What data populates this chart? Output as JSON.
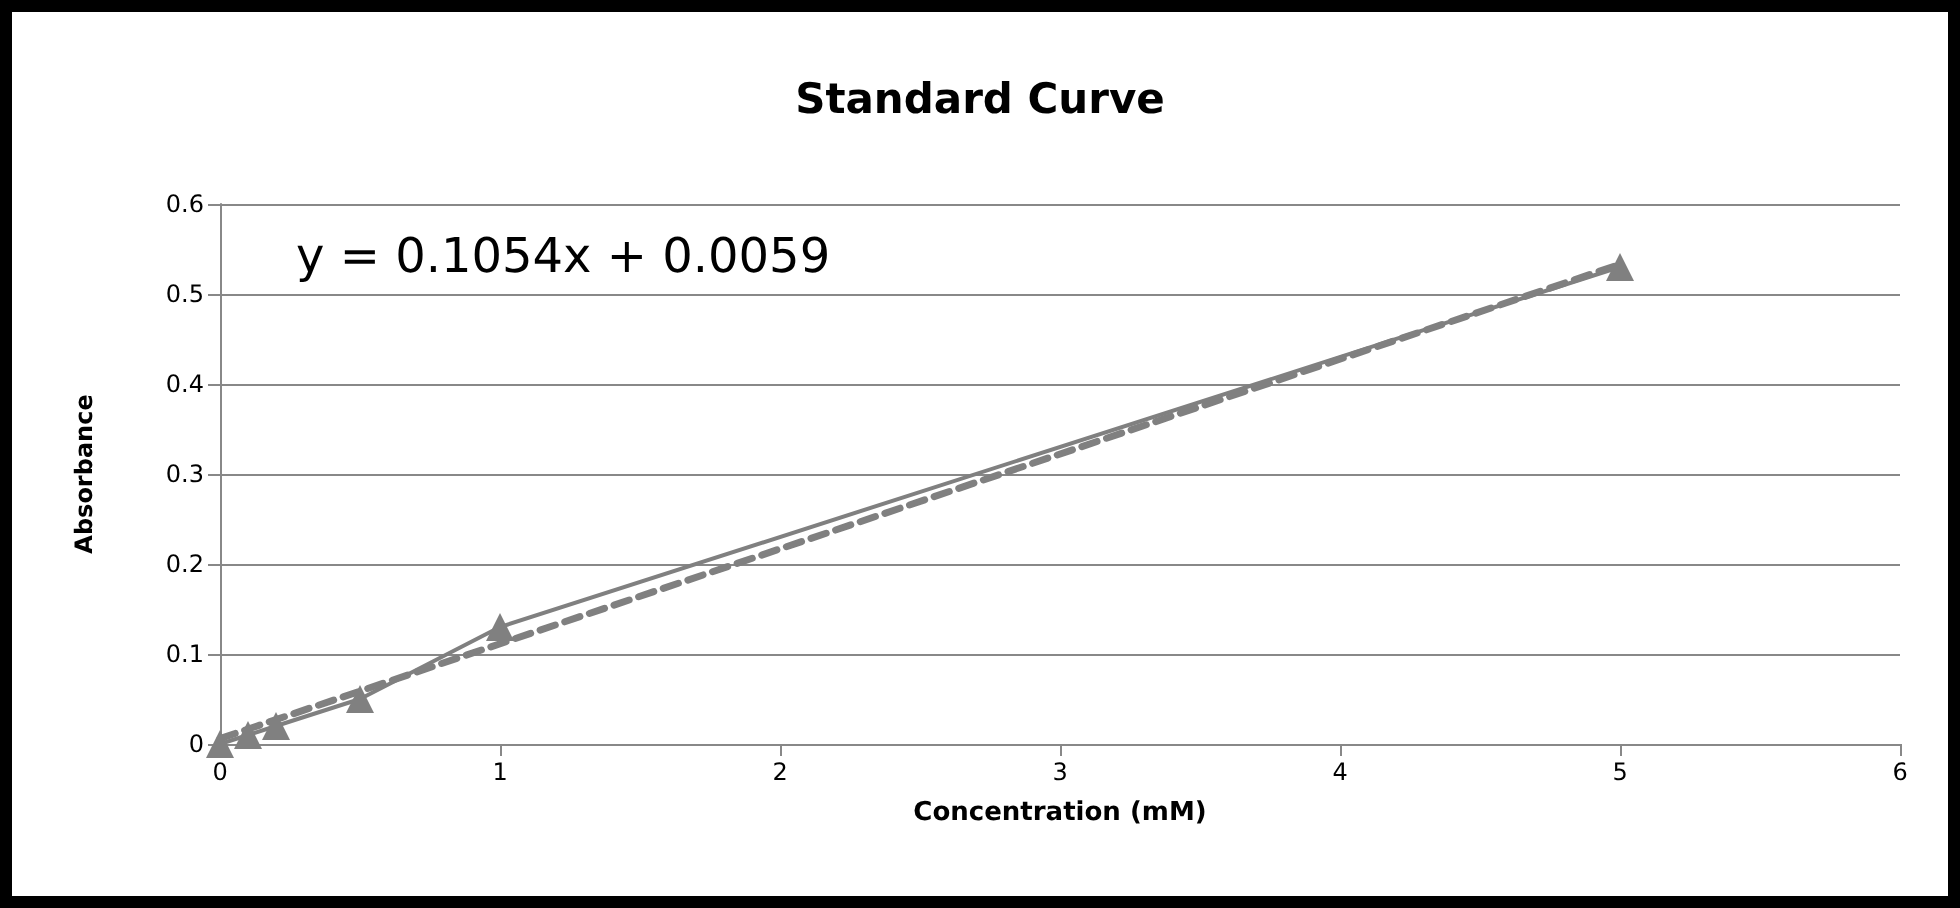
{
  "chart_data": {
    "type": "line",
    "title": "Standard Curve",
    "xlabel": "Concentration (mM)",
    "ylabel": "Absorbance",
    "annotations": [
      "y = 0.1054x + 0.0059"
    ],
    "series": [
      {
        "color": "#808080",
        "x": [
          0,
          0.1,
          0.2,
          0.5,
          1,
          5
        ],
        "values": [
          0,
          0.01,
          0.02,
          0.05,
          0.13,
          0.53
        ],
        "marker": "triangle",
        "line_style": "solid"
      },
      {
        "color": "#808080",
        "x": [
          0,
          5
        ],
        "values": [
          0.006,
          0.533
        ],
        "marker": "none",
        "line_style": "dashed"
      }
    ],
    "xlim": [
      0,
      6
    ],
    "xticks": [
      0,
      1,
      2,
      3,
      4,
      5,
      6
    ],
    "ylim": [
      0,
      0.6
    ],
    "yticks": [
      0,
      0.1,
      0.2,
      0.3,
      0.4,
      0.5,
      0.6
    ],
    "grid": "y"
  }
}
